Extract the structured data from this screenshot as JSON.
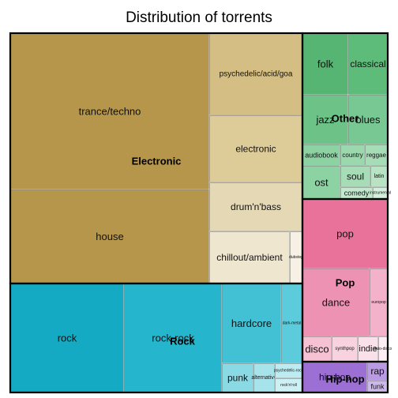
{
  "chart_data": {
    "type": "treemap",
    "title": "Distribution of torrents",
    "groups": [
      {
        "name": "Electronic",
        "items": [
          {
            "label": "trance/techno",
            "color": "#b5964a"
          },
          {
            "label": "house",
            "color": "#b5964a"
          },
          {
            "label": "psychedelic/acid/goa",
            "color": "#d4be84"
          },
          {
            "label": "electronic",
            "color": "#ddcb98"
          },
          {
            "label": "drum'n'bass",
            "color": "#e5d8b4"
          },
          {
            "label": "chillout/ambient",
            "color": "#efe6cf"
          },
          {
            "label": "dubstep",
            "color": "#f6f1e4"
          }
        ]
      },
      {
        "name": "Rock",
        "items": [
          {
            "label": "rock",
            "color": "#14aac4"
          },
          {
            "label": "rock-rock",
            "color": "#25b5cc"
          },
          {
            "label": "hardcore",
            "color": "#43c1d4"
          },
          {
            "label": "dark-metal",
            "color": "#5ccbdb"
          },
          {
            "label": "punk",
            "color": "#8adae5"
          },
          {
            "label": "alternative",
            "color": "#a6e3eb"
          },
          {
            "label": "psychedelic-rock",
            "color": "#bcebf1"
          },
          {
            "label": "rock'n'roll",
            "color": "#cdf0f4"
          },
          {
            "label": "",
            "color": "#e4f7f9"
          }
        ]
      },
      {
        "name": "Other",
        "items": [
          {
            "label": "folk",
            "color": "#56b573"
          },
          {
            "label": "classical",
            "color": "#5ebc7a"
          },
          {
            "label": "jazz",
            "color": "#6cc287"
          },
          {
            "label": "blues",
            "color": "#78c893"
          },
          {
            "label": "audiobook",
            "color": "#8dd2a3"
          },
          {
            "label": "country",
            "color": "#9bd8ae"
          },
          {
            "label": "reggae",
            "color": "#a6dcb6"
          },
          {
            "label": "ost",
            "color": "#8dd2a3"
          },
          {
            "label": "soul",
            "color": "#a6dcb6"
          },
          {
            "label": "latin",
            "color": "#b8e4c4"
          },
          {
            "label": "comedy",
            "color": "#c2e9cd"
          },
          {
            "label": "instrumental",
            "color": "#d4f0dc"
          }
        ]
      },
      {
        "name": "Pop",
        "items": [
          {
            "label": "pop",
            "color": "#e9729b"
          },
          {
            "label": "dance",
            "color": "#ee92b3"
          },
          {
            "label": "europop",
            "color": "#f3b2c9"
          },
          {
            "label": "disco",
            "color": "#f5c1d3"
          },
          {
            "label": "synthpop",
            "color": "#f8d2df"
          },
          {
            "label": "indie",
            "color": "#fae0e9"
          },
          {
            "label": "italo-disco",
            "color": "#fdeef3"
          }
        ]
      },
      {
        "name": "Hip-hop",
        "items": [
          {
            "label": "hip-hop",
            "color": "#9b6fd3"
          },
          {
            "label": "rap",
            "color": "#b99ae3"
          },
          {
            "label": "funk",
            "color": "#cdb8ec"
          },
          {
            "label": "",
            "color": "#e2d6f5"
          }
        ]
      }
    ]
  }
}
